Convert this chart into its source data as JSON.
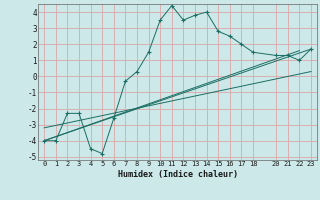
{
  "xlabel": "Humidex (Indice chaleur)",
  "bg_color": "#cce8e8",
  "grid_color": "#dba8a8",
  "line_color": "#1a6e64",
  "xlim": [
    -0.5,
    23.5
  ],
  "ylim": [
    -5.2,
    4.5
  ],
  "xticks": [
    0,
    1,
    2,
    3,
    4,
    5,
    6,
    7,
    8,
    9,
    10,
    11,
    12,
    13,
    14,
    15,
    16,
    17,
    18,
    20,
    21,
    22,
    23
  ],
  "yticks": [
    -5,
    -4,
    -3,
    -2,
    -1,
    0,
    1,
    2,
    3,
    4
  ],
  "line1_x": [
    0,
    1,
    2,
    3,
    4,
    5,
    6,
    7,
    8,
    9,
    10,
    11,
    12,
    13,
    14,
    15,
    16,
    17,
    18,
    20,
    21,
    22,
    23
  ],
  "line1_y": [
    -4.0,
    -4.0,
    -2.3,
    -2.3,
    -4.5,
    -4.8,
    -2.6,
    -0.3,
    0.3,
    1.5,
    3.5,
    4.4,
    3.5,
    3.8,
    4.0,
    2.8,
    2.5,
    2.0,
    1.5,
    1.3,
    1.3,
    1.0,
    1.7
  ],
  "line2_x": [
    0,
    23
  ],
  "line2_y": [
    -4.0,
    1.7
  ],
  "line3_x": [
    0,
    23
  ],
  "line3_y": [
    -3.2,
    0.3
  ],
  "line4_x": [
    0,
    22
  ],
  "line4_y": [
    -4.0,
    1.6
  ]
}
